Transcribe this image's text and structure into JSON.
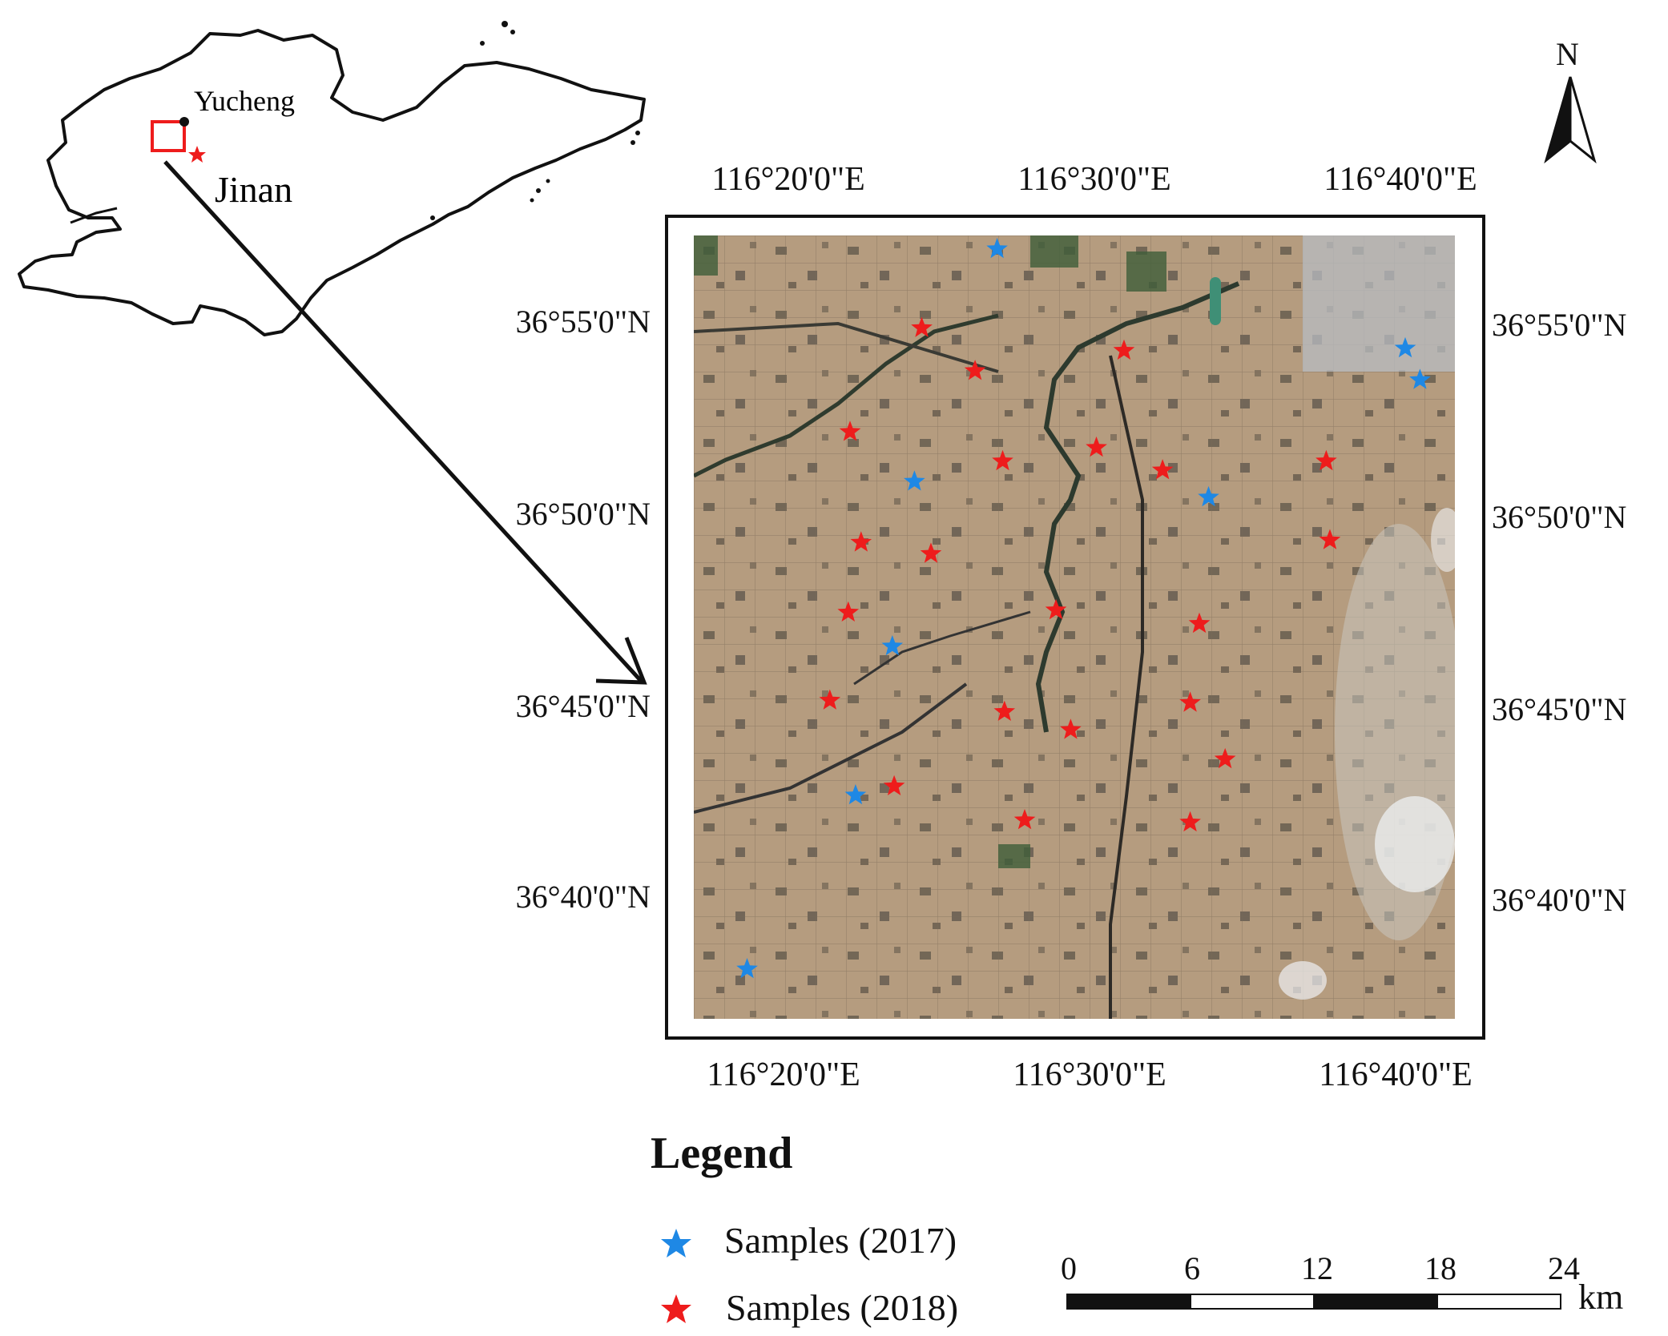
{
  "inset": {
    "yucheng_label": "Yucheng",
    "jinan_label": "Jinan"
  },
  "north_arrow": {
    "label": "N"
  },
  "map": {
    "lon_ticks_top": [
      "116°20'0\"E",
      "116°30'0\"E",
      "116°40'0\"E"
    ],
    "lon_ticks_bottom": [
      "116°20'0\"E",
      "116°30'0\"E",
      "116°40'0\"E"
    ],
    "lat_ticks_left": [
      "36°55'0\"N",
      "36°50'0\"N",
      "36°45'0\"N",
      "36°40'0\"N"
    ],
    "lat_ticks_right": [
      "36°55'0\"N",
      "36°50'0\"N",
      "36°45'0\"N",
      "36°40'0\"N"
    ]
  },
  "legend": {
    "title": "Legend",
    "items": [
      {
        "label": "Samples (2017)",
        "color": "#1e88e5"
      },
      {
        "label": "Samples (2018)",
        "color": "#ee1c1c"
      }
    ]
  },
  "scale_bar": {
    "ticks": [
      "0",
      "6",
      "12",
      "18",
      "24"
    ],
    "unit": "km"
  },
  "samples_2017": [
    {
      "lon": 116.464,
      "lat": 36.95
    },
    {
      "lon": 116.686,
      "lat": 36.906
    },
    {
      "lon": 116.694,
      "lat": 36.892
    },
    {
      "lon": 116.419,
      "lat": 36.847
    },
    {
      "lon": 116.579,
      "lat": 36.84
    },
    {
      "lon": 116.407,
      "lat": 36.774
    },
    {
      "lon": 116.387,
      "lat": 36.708
    },
    {
      "lon": 116.328,
      "lat": 36.631
    }
  ],
  "samples_2018": [
    {
      "lon": 116.423,
      "lat": 36.915
    },
    {
      "lon": 116.533,
      "lat": 36.905
    },
    {
      "lon": 116.452,
      "lat": 36.896
    },
    {
      "lon": 116.384,
      "lat": 36.869
    },
    {
      "lon": 116.467,
      "lat": 36.856
    },
    {
      "lon": 116.518,
      "lat": 36.862
    },
    {
      "lon": 116.554,
      "lat": 36.852
    },
    {
      "lon": 116.643,
      "lat": 36.856
    },
    {
      "lon": 116.39,
      "lat": 36.82
    },
    {
      "lon": 116.428,
      "lat": 36.815
    },
    {
      "lon": 116.645,
      "lat": 36.821
    },
    {
      "lon": 116.383,
      "lat": 36.789
    },
    {
      "lon": 116.496,
      "lat": 36.79
    },
    {
      "lon": 116.574,
      "lat": 36.784
    },
    {
      "lon": 116.373,
      "lat": 36.75
    },
    {
      "lon": 116.468,
      "lat": 36.745
    },
    {
      "lon": 116.569,
      "lat": 36.749
    },
    {
      "lon": 116.504,
      "lat": 36.737
    },
    {
      "lon": 116.588,
      "lat": 36.724
    },
    {
      "lon": 116.408,
      "lat": 36.712
    },
    {
      "lon": 116.479,
      "lat": 36.697
    },
    {
      "lon": 116.569,
      "lat": 36.696
    }
  ]
}
